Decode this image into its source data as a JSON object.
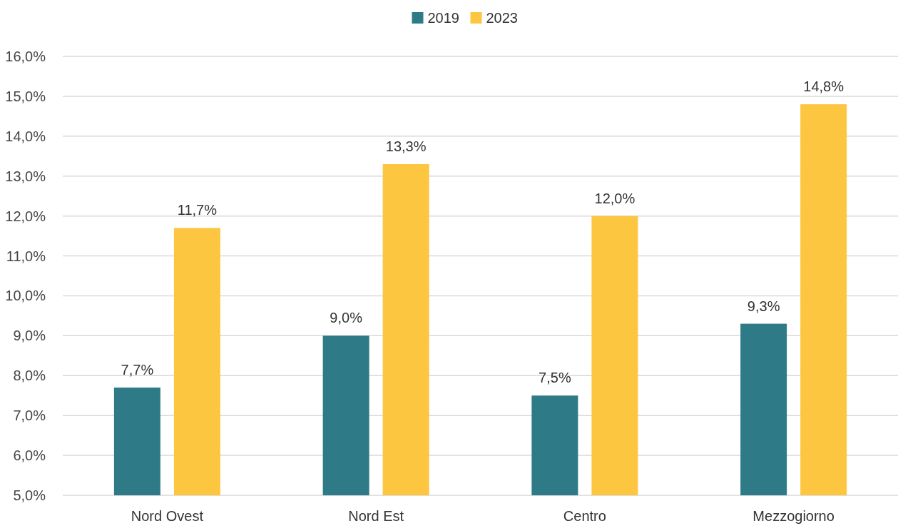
{
  "chart_data": {
    "type": "bar",
    "categories": [
      "Nord Ovest",
      "Nord Est",
      "Centro",
      "Mezzogiorno"
    ],
    "series": [
      {
        "name": "2019",
        "color": "#2e7b87",
        "values": [
          7.7,
          9.0,
          7.5,
          9.3
        ],
        "value_labels": [
          "7,7%",
          "9,0%",
          "7,5%",
          "9,3%"
        ]
      },
      {
        "name": "2023",
        "color": "#fdc640",
        "values": [
          11.7,
          13.3,
          12.0,
          14.8
        ],
        "value_labels": [
          "11,7%",
          "13,3%",
          "12,0%",
          "14,8%"
        ]
      }
    ],
    "ylim": [
      5,
      16
    ],
    "yticks": [
      {
        "value": 5,
        "label": "5,0%"
      },
      {
        "value": 6,
        "label": "6,0%"
      },
      {
        "value": 7,
        "label": "7,0%"
      },
      {
        "value": 8,
        "label": "8,0%"
      },
      {
        "value": 9,
        "label": "9,0%"
      },
      {
        "value": 10,
        "label": "10,0%"
      },
      {
        "value": 11,
        "label": "11,0%"
      },
      {
        "value": 12,
        "label": "12,0%"
      },
      {
        "value": 13,
        "label": "13,0%"
      },
      {
        "value": 14,
        "label": "14,0%"
      },
      {
        "value": 15,
        "label": "15,0%"
      },
      {
        "value": 16,
        "label": "16,0%"
      }
    ],
    "grid": "y",
    "legend": "top"
  }
}
